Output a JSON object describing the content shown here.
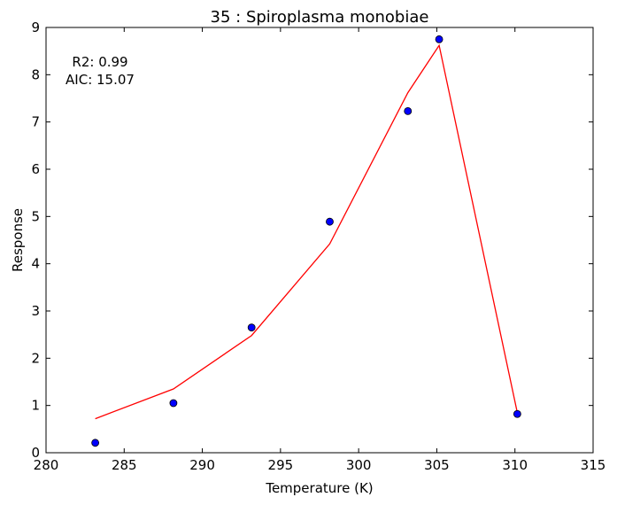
{
  "chart_data": {
    "type": "scatter",
    "title": "35 : Spiroplasma monobiae",
    "xlabel": "Temperature (K)",
    "ylabel": "Response",
    "xlim": [
      280,
      315
    ],
    "ylim": [
      0,
      9
    ],
    "xticks": [
      280,
      285,
      290,
      295,
      300,
      305,
      310,
      315
    ],
    "yticks": [
      0,
      1,
      2,
      3,
      4,
      5,
      6,
      7,
      8,
      9
    ],
    "grid": false,
    "annotations": [
      "R2: 0.99",
      "AIC: 15.07"
    ],
    "series": [
      {
        "kind": "points",
        "color": "#0000ff",
        "x": [
          283.15,
          288.15,
          293.15,
          298.15,
          303.15,
          305.15,
          310.15
        ],
        "y": [
          0.21,
          1.05,
          2.65,
          4.89,
          7.23,
          8.75,
          0.82
        ]
      },
      {
        "kind": "line",
        "color": "#ff0000",
        "x": [
          283.15,
          288.15,
          293.15,
          298.15,
          303.15,
          305.15,
          310.15
        ],
        "y": [
          0.72,
          1.35,
          2.48,
          4.42,
          7.62,
          8.62,
          0.85
        ]
      }
    ]
  }
}
